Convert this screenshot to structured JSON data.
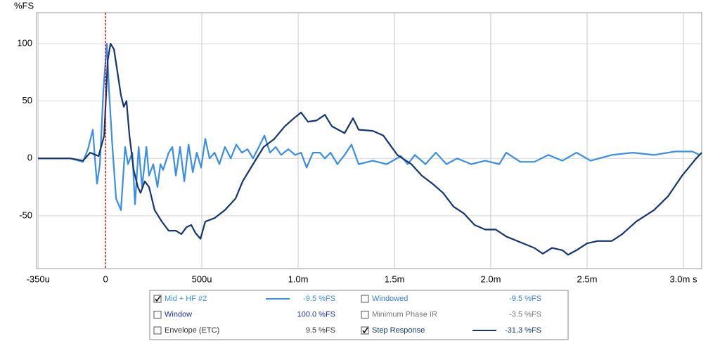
{
  "chart_data": {
    "type": "line",
    "y_label": "%FS",
    "xlim": [
      -0.358,
      3.095
    ],
    "ylim": [
      -96,
      127
    ],
    "xticks": [
      {
        "value": -0.35,
        "label": "-350u"
      },
      0,
      {
        "value": 0.5,
        "label": "500u"
      },
      {
        "value": 1,
        "label": "1.0m"
      },
      {
        "value": 1.5,
        "label": "1.5m"
      },
      {
        "value": 2,
        "label": "2.0m"
      },
      {
        "value": 2.5,
        "label": "2.5m"
      },
      {
        "value": 3,
        "label": "3.0m s"
      }
    ],
    "yticks": [
      -50,
      0,
      50,
      100
    ],
    "grid": true,
    "cursor": {
      "x": 0,
      "color": "#cc0000"
    },
    "series": [
      {
        "name": "Mid + HF #2",
        "color": "#3a8ee6",
        "checked": true,
        "readout": "-9.5 %FS",
        "x": [
          -0.35,
          -0.182,
          -0.117,
          -0.091,
          -0.066,
          -0.055,
          -0.044,
          -0.029,
          -0.011,
          0.007,
          0.018,
          0.036,
          0.055,
          0.08,
          0.102,
          0.117,
          0.139,
          0.153,
          0.172,
          0.19,
          0.212,
          0.226,
          0.248,
          0.27,
          0.285,
          0.299,
          0.328,
          0.347,
          0.365,
          0.387,
          0.409,
          0.431,
          0.453,
          0.474,
          0.496,
          0.518,
          0.54,
          0.566,
          0.591,
          0.62,
          0.65,
          0.679,
          0.708,
          0.737,
          0.766,
          0.796,
          0.825,
          0.854,
          0.883,
          0.912,
          0.949,
          0.985,
          1.015,
          1.044,
          1.077,
          1.113,
          1.139,
          1.168,
          1.204,
          1.241,
          1.277,
          1.314,
          1.387,
          1.46,
          1.533,
          1.569,
          1.606,
          1.661,
          1.715,
          1.77,
          1.825,
          1.898,
          1.971,
          2.044,
          2.08,
          2.153,
          2.226,
          2.299,
          2.372,
          2.445,
          2.518,
          2.628,
          2.737,
          2.847,
          2.956,
          3.047,
          3.084
        ],
        "values": [
          0,
          0,
          -3,
          8,
          25,
          0,
          -22,
          -5,
          60,
          100,
          60,
          10,
          -35,
          -45,
          10,
          -5,
          5,
          -40,
          10,
          -25,
          10,
          -15,
          -5,
          -25,
          -5,
          -10,
          5,
          10,
          -15,
          10,
          -20,
          12,
          -12,
          5,
          -8,
          17,
          0,
          5,
          -5,
          10,
          0,
          12,
          5,
          8,
          0,
          10,
          20,
          5,
          10,
          3,
          8,
          3,
          5,
          -8,
          5,
          5,
          0,
          5,
          -5,
          3,
          12,
          -5,
          -2,
          -5,
          2,
          -5,
          3,
          -5,
          5,
          -5,
          0,
          -5,
          -2,
          -5,
          5,
          -3,
          -3,
          3,
          -2,
          5,
          -2,
          3,
          5,
          3,
          6,
          6,
          3
        ]
      },
      {
        "name": "Step Response",
        "color": "#14366f",
        "checked": true,
        "readout": "-31.3 %FS",
        "x": [
          -0.35,
          -0.182,
          -0.117,
          -0.08,
          -0.036,
          -0.007,
          0.011,
          0.026,
          0.044,
          0.062,
          0.08,
          0.095,
          0.109,
          0.124,
          0.146,
          0.168,
          0.182,
          0.204,
          0.226,
          0.255,
          0.292,
          0.328,
          0.365,
          0.394,
          0.42,
          0.445,
          0.467,
          0.493,
          0.518,
          0.566,
          0.62,
          0.675,
          0.712,
          0.766,
          0.821,
          0.876,
          0.931,
          0.978,
          1.015,
          1.051,
          1.095,
          1.139,
          1.175,
          1.241,
          1.285,
          1.314,
          1.387,
          1.442,
          1.515,
          1.588,
          1.642,
          1.697,
          1.752,
          1.807,
          1.861,
          1.916,
          1.971,
          2.026,
          2.08,
          2.153,
          2.226,
          2.27,
          2.318,
          2.372,
          2.401,
          2.445,
          2.5,
          2.555,
          2.628,
          2.682,
          2.755,
          2.847,
          2.92,
          2.993,
          3.066,
          3.095
        ],
        "values": [
          0,
          0,
          -2,
          5,
          2,
          20,
          85,
          100,
          95,
          75,
          55,
          45,
          50,
          20,
          -10,
          -25,
          -30,
          -20,
          -25,
          -45,
          -55,
          -63,
          -63,
          -66,
          -60,
          -58,
          -65,
          -70,
          -55,
          -52,
          -45,
          -35,
          -20,
          -5,
          10,
          17,
          28,
          35,
          40,
          32,
          33,
          38,
          28,
          22,
          35,
          25,
          24,
          20,
          3,
          -5,
          -15,
          -22,
          -30,
          -42,
          -48,
          -58,
          -62,
          -62,
          -68,
          -73,
          -78,
          -83,
          -78,
          -80,
          -84,
          -80,
          -74,
          -72,
          -72,
          -66,
          -55,
          -45,
          -33,
          -15,
          0,
          5
        ]
      }
    ],
    "other_traces": [
      {
        "name": "Window",
        "color": "#1a2fa0",
        "checked": false,
        "readout": "100.0 %FS"
      },
      {
        "name": "Envelope (ETC)",
        "color": "#333333",
        "checked": false,
        "readout": "9.5 %FS"
      },
      {
        "name": "Windowed",
        "color": "#3a7fd6",
        "checked": false,
        "readout": "-9.5 %FS"
      },
      {
        "name": "Minimum Phase IR",
        "color": "#777777",
        "checked": false,
        "readout": "-3.5 %FS"
      }
    ]
  }
}
